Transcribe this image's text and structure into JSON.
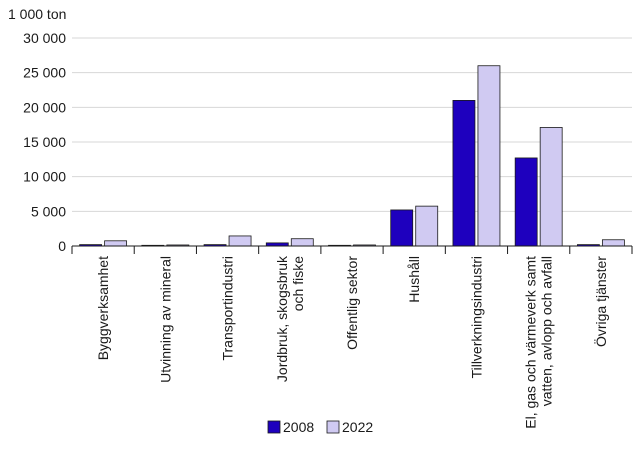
{
  "chart_data": {
    "type": "bar",
    "unit_label": "1 000 ton",
    "categories": [
      [
        "Byggverksamhet"
      ],
      [
        "Utvinning av mineral"
      ],
      [
        "Transportindustri"
      ],
      [
        "Jordbruk, skogsbruk",
        "och fiske"
      ],
      [
        "Offentlig sektor"
      ],
      [
        "Hushåll"
      ],
      [
        "Tillverkningsindustri"
      ],
      [
        "El, gas och värmeverk samt",
        "vatten, avlopp och avfall"
      ],
      [
        "Övriga tjänster"
      ]
    ],
    "series": [
      {
        "name": "2008",
        "color": "#1e00be",
        "values": [
          200,
          100,
          200,
          450,
          100,
          5200,
          21000,
          12700,
          200
        ]
      },
      {
        "name": "2022",
        "color": "#d0caf2",
        "values": [
          750,
          150,
          1450,
          1050,
          150,
          5750,
          26000,
          17100,
          900
        ]
      }
    ],
    "ylim": [
      0,
      30000
    ],
    "yticks": [
      0,
      5000,
      10000,
      15000,
      20000,
      25000,
      30000
    ],
    "ytick_labels": [
      "0",
      "5 000",
      "10 000",
      "15 000",
      "20 000",
      "25 000",
      "30 000"
    ],
    "grid": true,
    "legend_position": "bottom-center"
  }
}
